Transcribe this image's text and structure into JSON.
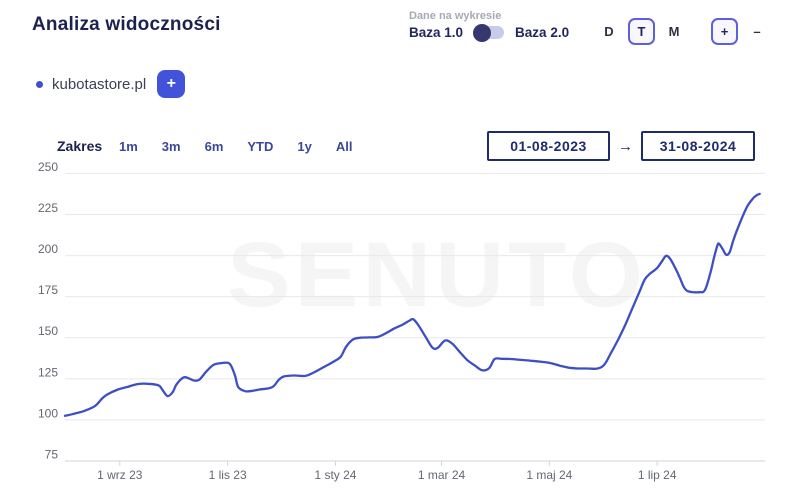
{
  "header": {
    "title": "Analiza widoczności"
  },
  "toolbar": {
    "data_on_chart_label": "Dane na wykresie",
    "baza1_label": "Baza 1.0",
    "baza2_label": "Baza 2.0",
    "toggle_selected": "Baza 1.0",
    "granularity": [
      {
        "label": "D",
        "active": false
      },
      {
        "label": "T",
        "active": true
      },
      {
        "label": "M",
        "active": false
      }
    ],
    "zoom_buttons": [
      {
        "label": "+",
        "boxed": true,
        "name": "zoom-in-button"
      },
      {
        "label": "–",
        "boxed": false,
        "name": "zoom-out-button"
      }
    ]
  },
  "legend": {
    "series_label": "kubotastore.pl",
    "add_button_label": "+",
    "dot_color": "#3d50d2"
  },
  "range": {
    "label": "Zakres",
    "options": [
      "1m",
      "3m",
      "6m",
      "YTD",
      "1y",
      "All"
    ],
    "date_from": "01-08-2023",
    "arrow_glyph": "→",
    "date_to": "31-08-2024"
  },
  "watermark": "SENUTO",
  "colors": {
    "line": "#3e4ec5",
    "accent_button": "#4353d9",
    "navy_text": "#23265e",
    "active_border": "#5d60d8",
    "gridline": "#e8e8ea",
    "axis_line": "#d4d5d9",
    "axis_label": "#636770",
    "watermark": "#f5f5f6"
  },
  "chart_data": {
    "type": "line",
    "title": "",
    "xlabel": "",
    "ylabel": "",
    "grid": true,
    "legend_position": "top-left",
    "ylim": [
      75,
      250
    ],
    "y_ticks": [
      75,
      100,
      125,
      150,
      175,
      200,
      225,
      250
    ],
    "x_range_days": [
      0,
      396
    ],
    "x_date_range": [
      "01-08-2023",
      "31-08-2024"
    ],
    "x_ticks": [
      {
        "day": 31,
        "label": "1 wrz 23"
      },
      {
        "day": 92,
        "label": "1 lis 23"
      },
      {
        "day": 153,
        "label": "1 sty 24"
      },
      {
        "day": 213,
        "label": "1 mar 24"
      },
      {
        "day": 274,
        "label": "1 maj 24"
      },
      {
        "day": 335,
        "label": "1 lip 24"
      }
    ],
    "series": [
      {
        "name": "kubotastore.pl",
        "color": "#3e4ec5",
        "points": [
          [
            0,
            102.5
          ],
          [
            6,
            104
          ],
          [
            11,
            105.5
          ],
          [
            17,
            108.5
          ],
          [
            21,
            113
          ],
          [
            24,
            115.5
          ],
          [
            30,
            118.5
          ],
          [
            36,
            120.3
          ],
          [
            41,
            121.8
          ],
          [
            47,
            122
          ],
          [
            53,
            121
          ],
          [
            55,
            118.5
          ],
          [
            58,
            114.5
          ],
          [
            61,
            117
          ],
          [
            63,
            121.5
          ],
          [
            67,
            125.8
          ],
          [
            70,
            125.3
          ],
          [
            73,
            124
          ],
          [
            76,
            124.5
          ],
          [
            80,
            129.5
          ],
          [
            84,
            133.5
          ],
          [
            88,
            134.5
          ],
          [
            93,
            134.3
          ],
          [
            96,
            127.5
          ],
          [
            98,
            120
          ],
          [
            102,
            117.5
          ],
          [
            106,
            117.7
          ],
          [
            110,
            118.5
          ],
          [
            115,
            119.2
          ],
          [
            118,
            120.5
          ],
          [
            121,
            124.5
          ],
          [
            124,
            126.5
          ],
          [
            130,
            127
          ],
          [
            136,
            126.8
          ],
          [
            141,
            129
          ],
          [
            147,
            132.5
          ],
          [
            152,
            135.5
          ],
          [
            156,
            138.5
          ],
          [
            159,
            144.5
          ],
          [
            163,
            149
          ],
          [
            167,
            150
          ],
          [
            172,
            150.2
          ],
          [
            177,
            150.5
          ],
          [
            182,
            153
          ],
          [
            186,
            155.5
          ],
          [
            191,
            158
          ],
          [
            195,
            160.5
          ],
          [
            197,
            161.3
          ],
          [
            200,
            157.5
          ],
          [
            204,
            150.5
          ],
          [
            208,
            143.8
          ],
          [
            211,
            144
          ],
          [
            215,
            148.3
          ],
          [
            219,
            146.5
          ],
          [
            224,
            140.5
          ],
          [
            228,
            136
          ],
          [
            232,
            133
          ],
          [
            236,
            130.2
          ],
          [
            240,
            131.5
          ],
          [
            243,
            137
          ],
          [
            247,
            137.2
          ],
          [
            253,
            137
          ],
          [
            258,
            136.5
          ],
          [
            264,
            136
          ],
          [
            270,
            135.3
          ],
          [
            275,
            134.5
          ],
          [
            280,
            133
          ],
          [
            285,
            131.8
          ],
          [
            290,
            131.3
          ],
          [
            296,
            131.3
          ],
          [
            301,
            131.2
          ],
          [
            305,
            133.5
          ],
          [
            309,
            141
          ],
          [
            313,
            149
          ],
          [
            317,
            158
          ],
          [
            321,
            168
          ],
          [
            325,
            178
          ],
          [
            328,
            185.5
          ],
          [
            331,
            189
          ],
          [
            335,
            192.5
          ],
          [
            338,
            197
          ],
          [
            340,
            199.8
          ],
          [
            342,
            198.5
          ],
          [
            345,
            193
          ],
          [
            348,
            186
          ],
          [
            350,
            181
          ],
          [
            352,
            178.5
          ],
          [
            355,
            177.8
          ],
          [
            359,
            177.7
          ],
          [
            362,
            179
          ],
          [
            365,
            189
          ],
          [
            367,
            198
          ],
          [
            369,
            206
          ],
          [
            370,
            207.2
          ],
          [
            372,
            204
          ],
          [
            374,
            200.5
          ],
          [
            376,
            202
          ],
          [
            378,
            209
          ],
          [
            380,
            215
          ],
          [
            383,
            223
          ],
          [
            386,
            230
          ],
          [
            389,
            234.5
          ],
          [
            391,
            236.5
          ],
          [
            393,
            237.5
          ]
        ]
      }
    ]
  }
}
